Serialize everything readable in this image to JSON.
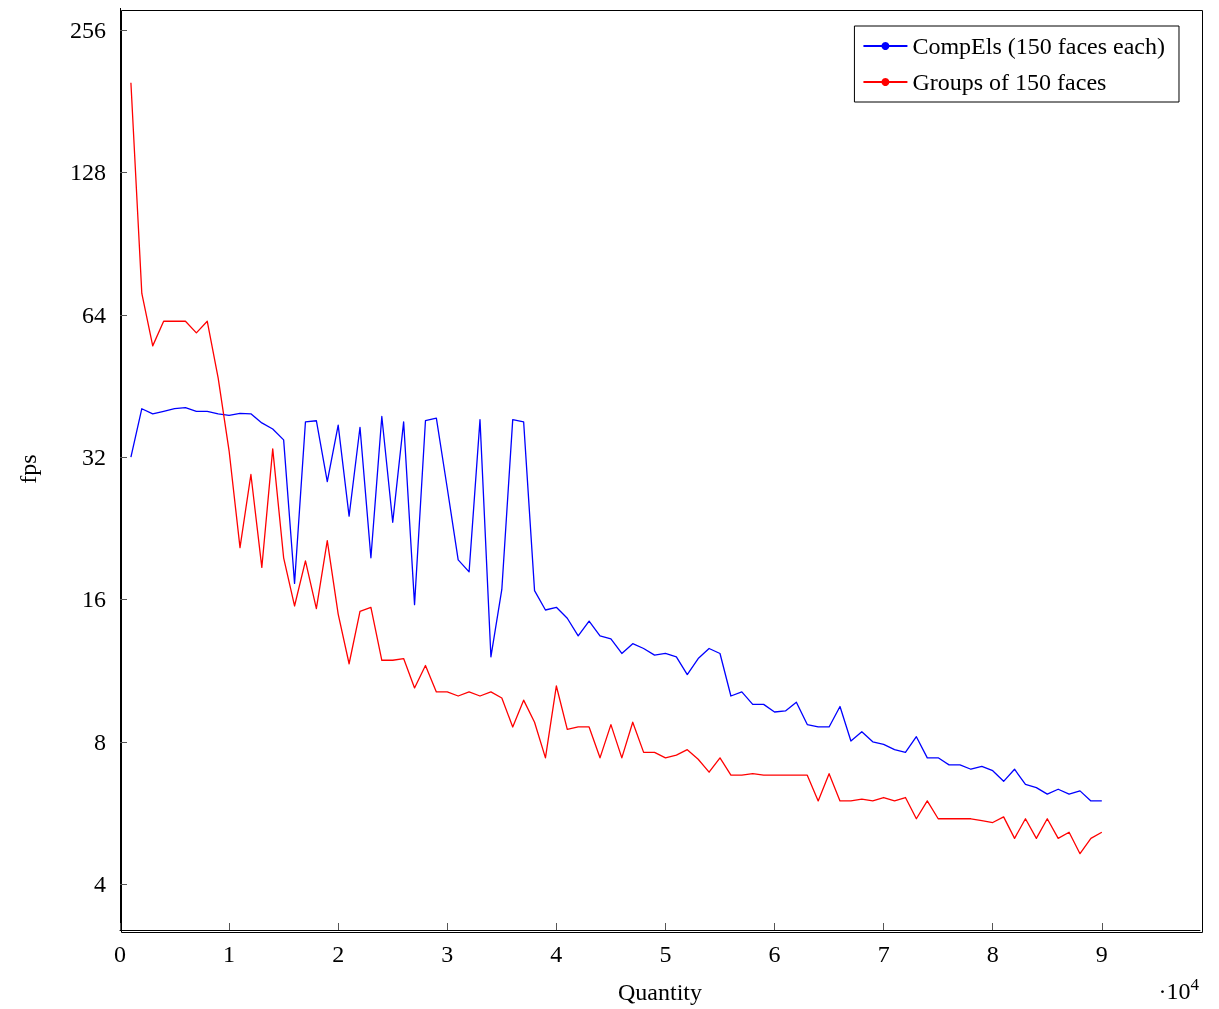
{
  "chart_data": {
    "type": "line",
    "xlabel": "Quantity",
    "ylabel": "fps",
    "annotations": [
      "·10$^{4}$"
    ],
    "x": [
      0.1,
      0.2,
      0.3,
      0.4,
      0.5,
      0.6,
      0.7,
      0.8,
      0.9,
      1,
      1.1,
      1.2,
      1.3,
      1.4,
      1.5,
      1.6,
      1.7,
      1.8,
      1.9,
      2,
      2.1,
      2.2,
      2.3,
      2.4,
      2.5,
      2.6,
      2.7,
      2.8,
      2.9,
      3,
      3.1,
      3.2,
      3.3,
      3.4,
      3.5,
      3.6,
      3.7,
      3.8,
      3.9,
      4,
      4.1,
      4.2,
      4.3,
      4.4,
      4.5,
      4.6,
      4.7,
      4.8,
      4.9,
      5,
      5.1,
      5.2,
      5.3,
      5.4,
      5.5,
      5.6,
      5.7,
      5.8,
      5.9,
      6,
      6.1,
      6.2,
      6.3,
      6.4,
      6.5,
      6.6,
      6.7,
      6.8,
      6.9,
      7,
      7.1,
      7.2,
      7.3,
      7.4,
      7.5,
      7.6,
      7.7,
      7.8,
      7.9,
      8,
      8.1,
      8.2,
      8.3,
      8.4,
      8.5,
      8.6,
      8.7,
      8.8,
      8.9,
      9
    ],
    "series": [
      {
        "name": "CompEls (150 faces each)",
        "color": "#0000ff",
        "values": [
          32,
          40.5,
          39.5,
          40,
          40.5,
          40.7,
          40,
          40,
          39.5,
          39.2,
          39.6,
          39.5,
          37.8,
          36.7,
          34.8,
          17.3,
          38,
          38.2,
          28.4,
          37.4,
          24,
          37,
          19.6,
          39,
          23.3,
          38,
          15.6,
          38.2,
          38.7,
          27.5,
          19.4,
          18.3,
          38.4,
          12.1,
          16.8,
          38.4,
          38,
          16.7,
          15.2,
          15.4,
          14.6,
          13.4,
          14.4,
          13.4,
          13.2,
          12.3,
          12.9,
          12.6,
          12.2,
          12.3,
          12.1,
          11.1,
          12,
          12.6,
          12.3,
          10,
          10.2,
          9.6,
          9.6,
          9.25,
          9.3,
          9.7,
          8.7,
          8.6,
          8.6,
          9.5,
          8.03,
          8.4,
          8,
          7.9,
          7.7,
          7.6,
          8.2,
          7.4,
          7.4,
          7.15,
          7.15,
          7,
          7.1,
          6.95,
          6.6,
          7,
          6.5,
          6.4,
          6.2,
          6.35,
          6.2,
          6.3,
          6,
          6
        ]
      },
      {
        "name": "Groups of 150 faces",
        "color": "#ff0000",
        "values": [
          198,
          71,
          55,
          62,
          62,
          62,
          58.6,
          62,
          47,
          33,
          20.6,
          29.4,
          18.7,
          33.3,
          19.6,
          15.5,
          19.3,
          15.3,
          21.3,
          14.9,
          11.7,
          15.1,
          15.4,
          11.9,
          11.9,
          12,
          10.4,
          11.6,
          10.2,
          10.2,
          10,
          10.2,
          10,
          10.2,
          9.9,
          8.6,
          9.8,
          8.8,
          7.4,
          10.5,
          8.5,
          8.6,
          8.6,
          7.4,
          8.7,
          7.4,
          8.8,
          7.6,
          7.6,
          7.4,
          7.5,
          7.7,
          7.35,
          6.9,
          7.4,
          6.8,
          6.8,
          6.85,
          6.8,
          6.8,
          6.8,
          6.8,
          6.8,
          6,
          6.85,
          6,
          6,
          6.05,
          6,
          6.1,
          6,
          6.1,
          5.5,
          6,
          5.5,
          5.5,
          5.5,
          5.5,
          5.45,
          5.4,
          5.55,
          5,
          5.5,
          5,
          5.5,
          5,
          5.15,
          4.64,
          5,
          5.15
        ]
      }
    ],
    "xlim": [
      0,
      9.9
    ],
    "xticks": [
      0,
      1,
      2,
      3,
      4,
      5,
      6,
      7,
      8,
      9
    ],
    "ylim": [
      3.2,
      285
    ],
    "yticks": [
      4,
      8,
      16,
      32,
      64,
      128,
      256
    ],
    "log": "y",
    "grid": false,
    "legend": "top right"
  }
}
